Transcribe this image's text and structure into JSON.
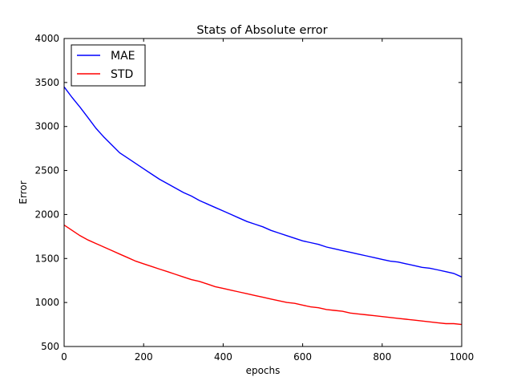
{
  "chart_data": {
    "type": "line",
    "title": "Stats of Absolute error",
    "xlabel": "epochs",
    "ylabel": "Error",
    "xlim": [
      0,
      1000
    ],
    "ylim": [
      500,
      4000
    ],
    "xticks": [
      0,
      200,
      400,
      600,
      800,
      1000
    ],
    "yticks": [
      500,
      1000,
      1500,
      2000,
      2500,
      3000,
      3500,
      4000
    ],
    "grid": false,
    "legend_position": "top-left",
    "x": [
      0,
      20,
      40,
      60,
      80,
      100,
      120,
      140,
      160,
      180,
      200,
      220,
      240,
      260,
      280,
      300,
      320,
      340,
      360,
      380,
      400,
      420,
      440,
      460,
      480,
      500,
      520,
      540,
      560,
      580,
      600,
      620,
      640,
      660,
      680,
      700,
      720,
      740,
      760,
      780,
      800,
      820,
      840,
      860,
      880,
      900,
      920,
      940,
      960,
      980,
      1000
    ],
    "series": [
      {
        "name": "MAE",
        "color": "#0000ff",
        "values": [
          3450,
          3330,
          3220,
          3100,
          2980,
          2880,
          2790,
          2700,
          2640,
          2580,
          2520,
          2460,
          2400,
          2350,
          2300,
          2250,
          2210,
          2160,
          2120,
          2080,
          2040,
          2000,
          1960,
          1920,
          1890,
          1860,
          1820,
          1790,
          1760,
          1730,
          1700,
          1680,
          1660,
          1630,
          1610,
          1590,
          1570,
          1550,
          1530,
          1510,
          1490,
          1470,
          1460,
          1440,
          1420,
          1400,
          1390,
          1370,
          1350,
          1330,
          1290
        ]
      },
      {
        "name": "STD",
        "color": "#ff0000",
        "values": [
          1880,
          1820,
          1760,
          1710,
          1670,
          1630,
          1590,
          1550,
          1510,
          1470,
          1440,
          1410,
          1380,
          1350,
          1320,
          1290,
          1260,
          1240,
          1210,
          1180,
          1160,
          1140,
          1120,
          1100,
          1080,
          1060,
          1040,
          1020,
          1000,
          990,
          970,
          950,
          940,
          920,
          910,
          900,
          880,
          870,
          860,
          850,
          840,
          830,
          820,
          810,
          800,
          790,
          780,
          770,
          760,
          760,
          750
        ]
      }
    ]
  }
}
